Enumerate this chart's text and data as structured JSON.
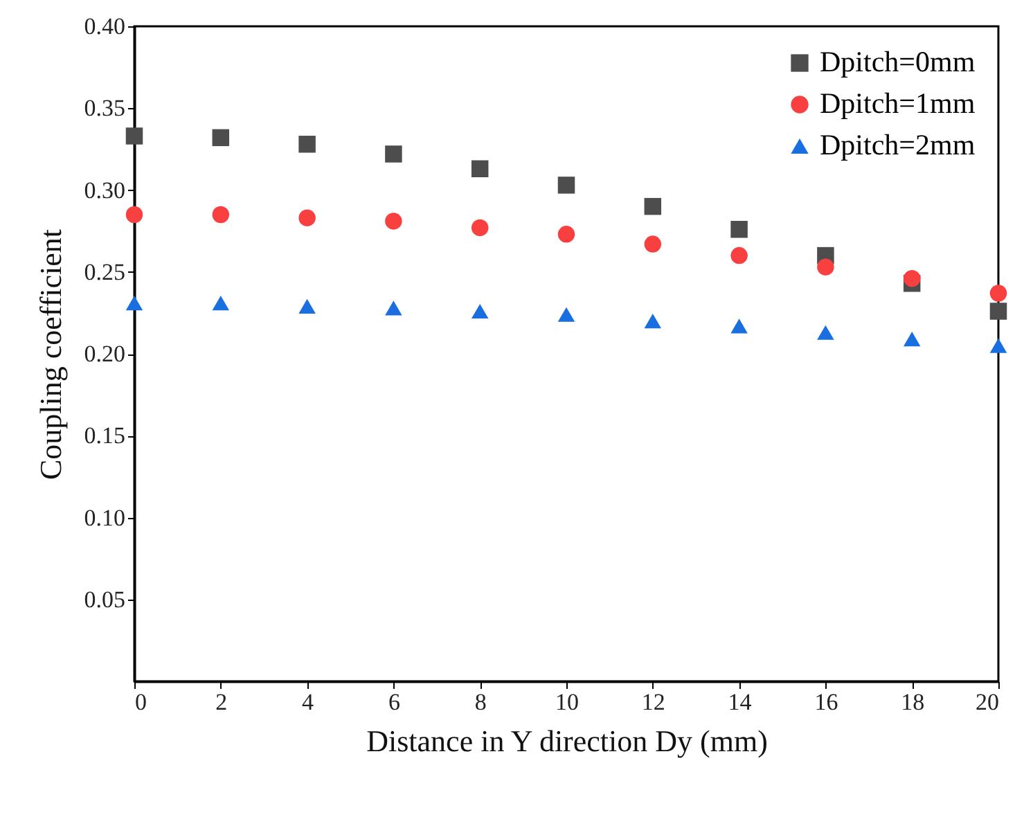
{
  "chart_data": {
    "type": "scatter",
    "xlabel": "Distance in Y direction Dy (mm)",
    "ylabel": "Coupling coefficient",
    "x": [
      0,
      2,
      4,
      6,
      8,
      10,
      12,
      14,
      16,
      18,
      20
    ],
    "xlim": [
      0,
      20
    ],
    "xticks": [
      0,
      2,
      4,
      6,
      8,
      10,
      12,
      14,
      16,
      18,
      20
    ],
    "ylim": [
      0,
      0.4
    ],
    "yticks": [
      0.05,
      {
        "value": 0.1,
        "label": "0.10"
      },
      0.15,
      {
        "value": 0.2,
        "label": "0.20"
      },
      0.25,
      {
        "value": 0.3,
        "label": "0.30"
      },
      0.35,
      {
        "value": 0.4,
        "label": "0.40"
      }
    ],
    "grid": false,
    "legend": "top right",
    "series": [
      {
        "name": "Dpitch=0mm",
        "color": "#4d4d4d",
        "marker": "square",
        "values": [
          0.333,
          0.332,
          0.328,
          0.322,
          0.313,
          0.303,
          0.29,
          0.276,
          0.26,
          0.243,
          0.226
        ]
      },
      {
        "name": "Dpitch=1mm",
        "color": "#f84040",
        "marker": "circle",
        "values": [
          0.285,
          0.285,
          0.283,
          0.281,
          0.277,
          0.273,
          0.267,
          0.26,
          0.253,
          0.246,
          0.237
        ]
      },
      {
        "name": "Dpitch=2mm",
        "color": "#1a6fe0",
        "marker": "triangle",
        "values": [
          0.231,
          0.231,
          0.229,
          0.228,
          0.226,
          0.224,
          0.22,
          0.217,
          0.213,
          0.209,
          0.205
        ]
      }
    ]
  }
}
